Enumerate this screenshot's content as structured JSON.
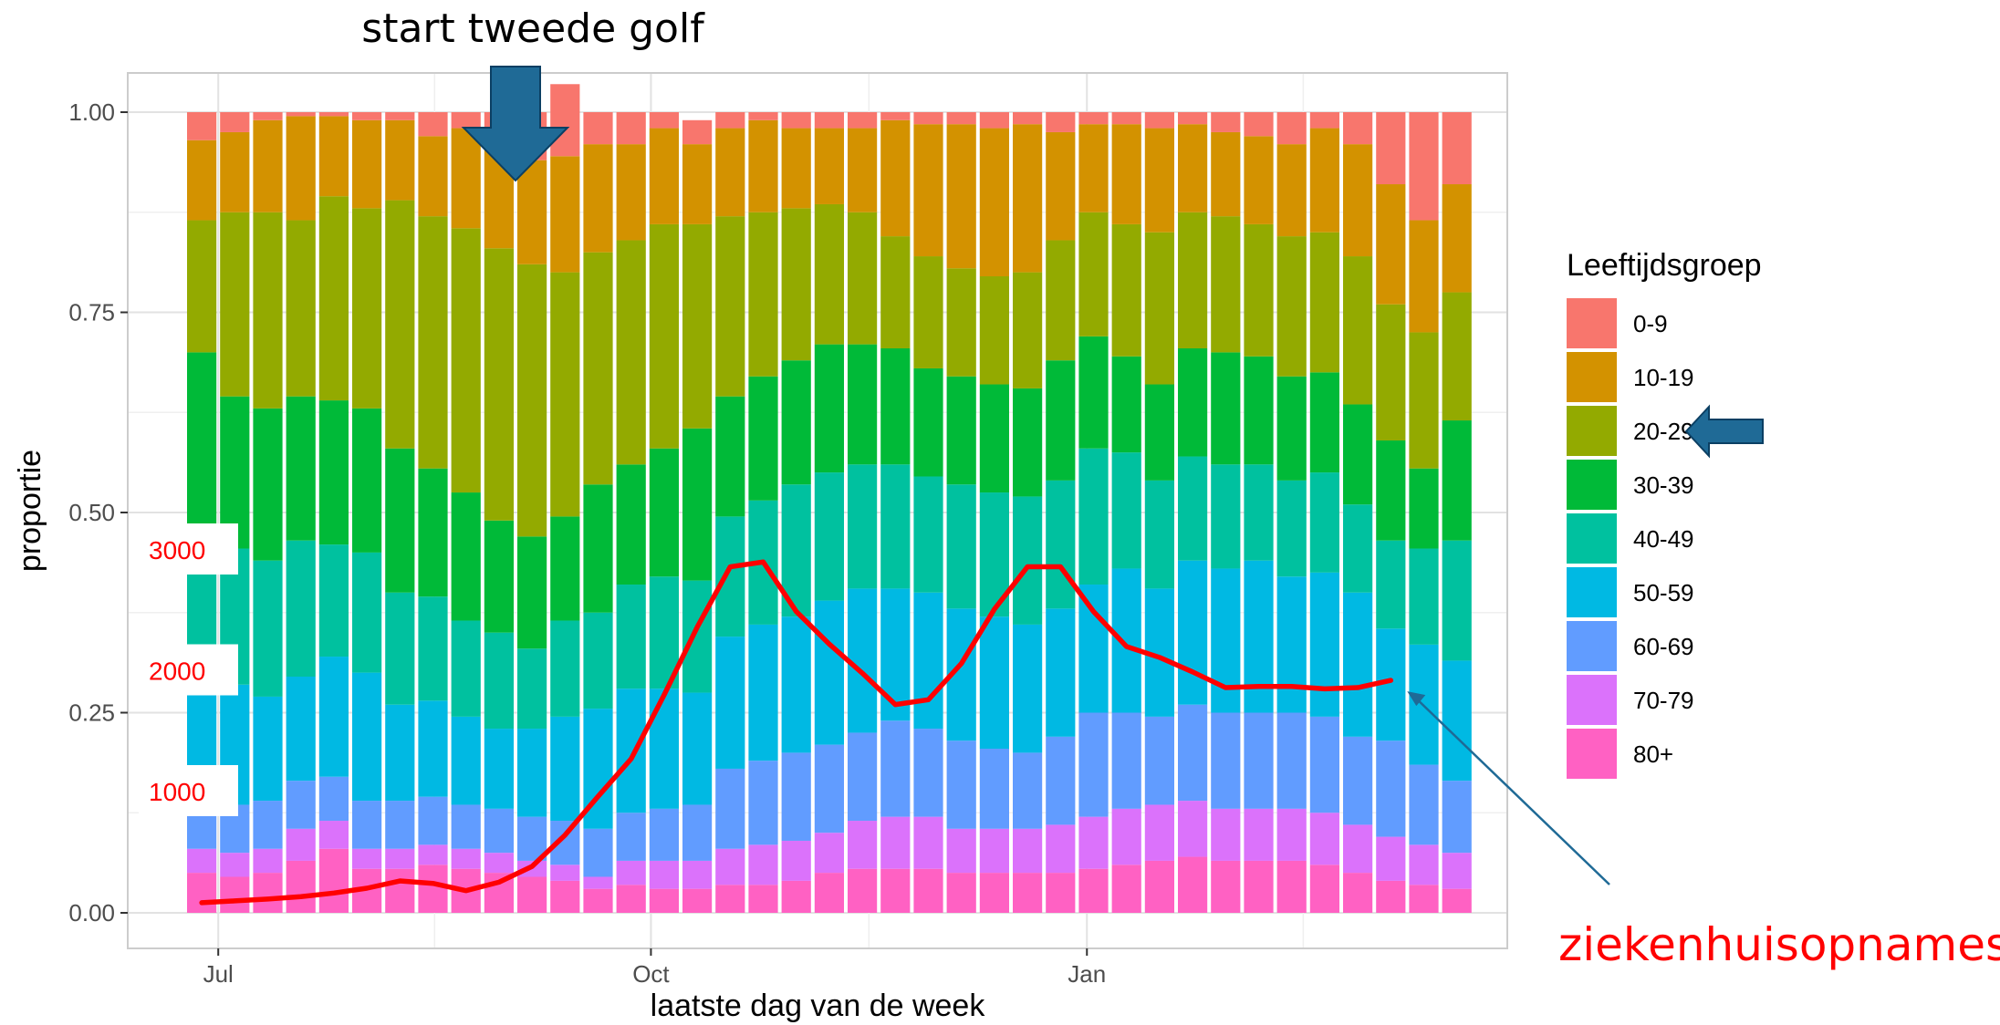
{
  "chart_data": {
    "type": "bar",
    "stacked": true,
    "xlabel": "laatste dag van de week",
    "ylabel": "proportie",
    "ylim": [
      0,
      1
    ],
    "y_ticks": [
      "0.00",
      "0.25",
      "0.50",
      "0.75",
      "1.00"
    ],
    "x_ticks": [
      {
        "label": "Jul",
        "week_index": 0.5
      },
      {
        "label": "Oct",
        "week_index": 13.6
      },
      {
        "label": "Jan",
        "week_index": 26.8
      }
    ],
    "legend": {
      "title": "Leeftijdsgroep",
      "placement": "right"
    },
    "series": [
      {
        "name": "80+",
        "color": "#FF61C3",
        "values": [
          0.05,
          0.045,
          0.05,
          0.065,
          0.08,
          0.055,
          0.055,
          0.06,
          0.055,
          0.05,
          0.045,
          0.04,
          0.03,
          0.035,
          0.03,
          0.03,
          0.035,
          0.035,
          0.04,
          0.05,
          0.055,
          0.055,
          0.055,
          0.05,
          0.05,
          0.05,
          0.05,
          0.055,
          0.06,
          0.065,
          0.07,
          0.065,
          0.065,
          0.065,
          0.06,
          0.05,
          0.04,
          0.035,
          0.03
        ]
      },
      {
        "name": "70-79",
        "color": "#DB72FB",
        "values": [
          0.03,
          0.03,
          0.03,
          0.04,
          0.035,
          0.025,
          0.025,
          0.025,
          0.025,
          0.025,
          0.02,
          0.02,
          0.015,
          0.03,
          0.035,
          0.035,
          0.045,
          0.05,
          0.05,
          0.05,
          0.06,
          0.065,
          0.065,
          0.055,
          0.055,
          0.055,
          0.06,
          0.065,
          0.07,
          0.07,
          0.07,
          0.065,
          0.065,
          0.065,
          0.065,
          0.06,
          0.055,
          0.05,
          0.045
        ]
      },
      {
        "name": "60-69",
        "color": "#619CFF",
        "values": [
          0.06,
          0.06,
          0.06,
          0.06,
          0.055,
          0.06,
          0.06,
          0.06,
          0.055,
          0.055,
          0.055,
          0.055,
          0.06,
          0.06,
          0.065,
          0.07,
          0.1,
          0.105,
          0.11,
          0.11,
          0.11,
          0.12,
          0.11,
          0.11,
          0.1,
          0.095,
          0.11,
          0.13,
          0.12,
          0.11,
          0.12,
          0.12,
          0.12,
          0.12,
          0.12,
          0.11,
          0.12,
          0.1,
          0.09
        ]
      },
      {
        "name": "50-59",
        "color": "#00B9E3",
        "values": [
          0.15,
          0.15,
          0.13,
          0.13,
          0.15,
          0.16,
          0.12,
          0.12,
          0.11,
          0.1,
          0.11,
          0.13,
          0.15,
          0.155,
          0.15,
          0.14,
          0.165,
          0.17,
          0.17,
          0.18,
          0.18,
          0.165,
          0.17,
          0.165,
          0.165,
          0.16,
          0.16,
          0.16,
          0.18,
          0.16,
          0.18,
          0.18,
          0.19,
          0.17,
          0.18,
          0.18,
          0.14,
          0.15,
          0.15
        ]
      },
      {
        "name": "40-49",
        "color": "#00C19F",
        "values": [
          0.17,
          0.17,
          0.17,
          0.17,
          0.14,
          0.15,
          0.14,
          0.13,
          0.12,
          0.12,
          0.1,
          0.12,
          0.12,
          0.13,
          0.14,
          0.14,
          0.15,
          0.155,
          0.165,
          0.16,
          0.155,
          0.155,
          0.145,
          0.155,
          0.155,
          0.16,
          0.16,
          0.17,
          0.145,
          0.135,
          0.13,
          0.13,
          0.12,
          0.12,
          0.125,
          0.11,
          0.11,
          0.12,
          0.15
        ]
      },
      {
        "name": "30-39",
        "color": "#00BA38",
        "values": [
          0.24,
          0.19,
          0.19,
          0.18,
          0.18,
          0.18,
          0.18,
          0.16,
          0.16,
          0.14,
          0.14,
          0.13,
          0.16,
          0.15,
          0.16,
          0.19,
          0.15,
          0.155,
          0.155,
          0.16,
          0.15,
          0.145,
          0.135,
          0.135,
          0.135,
          0.135,
          0.15,
          0.14,
          0.12,
          0.12,
          0.135,
          0.14,
          0.135,
          0.13,
          0.125,
          0.125,
          0.125,
          0.1,
          0.15
        ]
      },
      {
        "name": "20-29",
        "color": "#93AA00",
        "values": [
          0.165,
          0.23,
          0.245,
          0.22,
          0.255,
          0.25,
          0.31,
          0.315,
          0.33,
          0.34,
          0.34,
          0.305,
          0.29,
          0.28,
          0.28,
          0.255,
          0.225,
          0.205,
          0.19,
          0.175,
          0.165,
          0.14,
          0.14,
          0.135,
          0.135,
          0.145,
          0.15,
          0.155,
          0.165,
          0.19,
          0.17,
          0.17,
          0.165,
          0.175,
          0.175,
          0.185,
          0.17,
          0.17,
          0.16
        ]
      },
      {
        "name": "10-19",
        "color": "#D39200",
        "values": [
          0.1,
          0.1,
          0.115,
          0.13,
          0.1,
          0.11,
          0.1,
          0.1,
          0.125,
          0.13,
          0.13,
          0.145,
          0.135,
          0.12,
          0.12,
          0.1,
          0.11,
          0.115,
          0.1,
          0.095,
          0.105,
          0.145,
          0.165,
          0.18,
          0.185,
          0.185,
          0.135,
          0.11,
          0.125,
          0.13,
          0.11,
          0.105,
          0.11,
          0.115,
          0.13,
          0.14,
          0.15,
          0.14,
          0.135
        ]
      },
      {
        "name": "0-9",
        "color": "#F8766D",
        "values": [
          0.035,
          0.025,
          0.01,
          0.005,
          0.005,
          0.01,
          0.01,
          0.03,
          0.02,
          0.04,
          0.06,
          0.09,
          0.04,
          0.04,
          0.02,
          0.03,
          0.02,
          0.01,
          0.02,
          0.02,
          0.02,
          0.01,
          0.015,
          0.015,
          0.02,
          0.015,
          0.025,
          0.015,
          0.015,
          0.02,
          0.015,
          0.025,
          0.03,
          0.04,
          0.02,
          0.04,
          0.09,
          0.135,
          0.09
        ]
      }
    ],
    "secondary_series": {
      "name": "ziekenhuisopnames",
      "color": "#ff0000",
      "axis_labels": [
        {
          "label": "1000",
          "value": 1000
        },
        {
          "label": "2000",
          "value": 2000
        },
        {
          "label": "3000",
          "value": 3000
        }
      ],
      "values": [
        80,
        95,
        110,
        130,
        160,
        200,
        260,
        240,
        180,
        250,
        380,
        640,
        960,
        1270,
        1800,
        2360,
        2860,
        2900,
        2490,
        2220,
        1980,
        1720,
        1760,
        2060,
        2510,
        2860,
        2860,
        2490,
        2200,
        2110,
        1990,
        1860,
        1870,
        1870,
        1850,
        1860,
        1920
      ]
    },
    "annotations": [
      {
        "text": "start tweede golf",
        "points_to_week_index": 9.5
      },
      {
        "text": "ziekenhuisopnames",
        "points_to": "secondary_series"
      }
    ],
    "highlighted_legend_entry": "20-29",
    "arrow_color": "#1f6a96",
    "grid": true
  }
}
